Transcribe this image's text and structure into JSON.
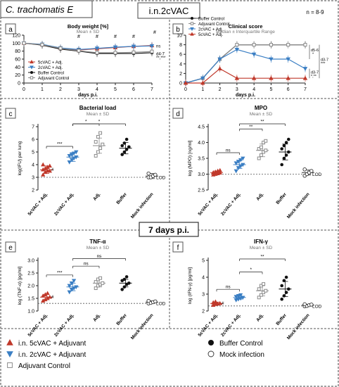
{
  "header": {
    "title": "C. trachomatis E",
    "center_title": "i.n.2cVAC",
    "n_note": "n = 8-9",
    "mid_banner": "7 days p.i."
  },
  "colors": {
    "vac5": "#c0392b",
    "vac2": "#3b7fc4",
    "adj": "#8a8a8a",
    "buffer": "#111111",
    "mock": "#ffffff"
  },
  "legend": {
    "vac5": "i.n. 5cVAC + Adjuvant",
    "vac2": "i.n. 2cVAC + Adjuvant",
    "adj": "Adjuvant Control",
    "buffer": "Buffer Control",
    "mock": "Mock infection"
  },
  "chart_data": [
    {
      "panel": "a",
      "type": "line",
      "title": "Body weight [%]",
      "subtitle": "Mean ± SD",
      "xlabel": "days p.i.",
      "ylabel": "",
      "xlim": [
        0,
        7
      ],
      "ylim": [
        0,
        120
      ],
      "yticks": [
        0,
        20,
        40,
        60,
        80,
        100,
        120
      ],
      "x": [
        0,
        1,
        2,
        3,
        4,
        5,
        6,
        7
      ],
      "legend_items": [
        "5cVAC + Adj.",
        "2cVAC + Adj.",
        "Buffer Control",
        "Adjuvant Control"
      ],
      "series": [
        {
          "name": "5cVAC + Adj.",
          "key": "vac5",
          "values": [
            100,
            96,
            87,
            83,
            86,
            89,
            92,
            94
          ]
        },
        {
          "name": "2cVAC + Adj.",
          "key": "vac2",
          "values": [
            100,
            97,
            88,
            84,
            87,
            90,
            92,
            93
          ]
        },
        {
          "name": "Buffer Control",
          "key": "buffer",
          "values": [
            100,
            95,
            85,
            80,
            74,
            74,
            74,
            76
          ]
        },
        {
          "name": "Adjuvant Control",
          "key": "adj",
          "values": [
            100,
            96,
            87,
            81,
            76,
            76,
            77,
            79
          ]
        }
      ],
      "annotations": [
        "#",
        "#",
        "#",
        "#",
        "#",
        "ns",
        "d4-7",
        "**,***"
      ]
    },
    {
      "panel": "b",
      "type": "line",
      "title": "Clinical score",
      "subtitle": "Median ± Interquartile Range",
      "xlabel": "days p.i.",
      "ylabel": "",
      "xlim": [
        0,
        7
      ],
      "ylim": [
        0,
        10
      ],
      "yticks": [
        0,
        2,
        4,
        6,
        8,
        10
      ],
      "x": [
        0,
        1,
        2,
        3,
        4,
        5,
        6,
        7
      ],
      "legend_items": [
        "Buffer Control",
        "Adjuvant Control",
        "2cVAC + Adj.",
        "5cVAC + Adj."
      ],
      "series": [
        {
          "name": "Buffer Control",
          "key": "buffer",
          "values": [
            0,
            1,
            5,
            8,
            8,
            8,
            8,
            8
          ]
        },
        {
          "name": "Adjuvant Control",
          "key": "adj",
          "values": [
            0,
            1,
            5,
            8,
            8,
            8,
            8,
            8
          ]
        },
        {
          "name": "2cVAC + Adj.",
          "key": "vac2",
          "values": [
            0,
            1,
            5,
            7,
            6,
            5,
            5,
            3
          ]
        },
        {
          "name": "5cVAC + Adj.",
          "key": "vac5",
          "values": [
            0,
            0,
            3,
            1,
            1,
            1,
            1,
            1
          ]
        }
      ],
      "annotations": [
        "d5-6",
        "*",
        "d3-7",
        "***",
        "d3-7",
        "*,**"
      ]
    },
    {
      "panel": "c",
      "type": "scatter",
      "title": "Bacterial load",
      "subtitle": "Mean ± SD",
      "ylabel": "log(IFU) per lung",
      "ylim": [
        2,
        7
      ],
      "yticks": [
        2,
        3,
        4,
        5,
        6,
        7
      ],
      "categories": [
        "5cVAC + Adj.",
        "2cVAC + Adj.",
        "Adj.",
        "Buffer",
        "Mock infection"
      ],
      "lod": 3.0,
      "lod_label": "LOD",
      "groups": [
        {
          "key": "vac5",
          "mean": 3.6,
          "sd": 0.3,
          "points": [
            3.2,
            3.4,
            3.5,
            3.5,
            3.6,
            3.7,
            3.8,
            3.9,
            4.0
          ]
        },
        {
          "key": "vac2",
          "mean": 4.6,
          "sd": 0.35,
          "points": [
            4.2,
            4.4,
            4.5,
            4.6,
            4.7,
            4.8,
            4.9,
            5.0
          ]
        },
        {
          "key": "adj",
          "mean": 5.5,
          "sd": 0.6,
          "points": [
            4.7,
            5.0,
            5.3,
            5.6,
            5.8,
            6.2,
            6.5
          ]
        },
        {
          "key": "buffer",
          "mean": 5.3,
          "sd": 0.45,
          "points": [
            4.8,
            5.0,
            5.2,
            5.4,
            5.5,
            5.7,
            6.0
          ]
        },
        {
          "key": "mock",
          "mean": 3.1,
          "sd": 0.2,
          "points": [
            3.0,
            3.0,
            3.1,
            3.2,
            3.3
          ]
        }
      ],
      "hash_marks": [
        {
          "group": 0,
          "label": "#"
        }
      ],
      "brackets": [
        {
          "from": 0,
          "to": 1,
          "label": "***"
        },
        {
          "from": 1,
          "to": 2,
          "label": "*"
        },
        {
          "from": 1,
          "to": 3,
          "label": "*"
        }
      ]
    },
    {
      "panel": "d",
      "type": "scatter",
      "title": "MPO",
      "subtitle": "Mean ± SD",
      "ylabel": "log (MPO) [ng/ml]",
      "ylim": [
        2.5,
        4.5
      ],
      "yticks": [
        2.5,
        3.0,
        3.5,
        4.0,
        4.5
      ],
      "categories": [
        "5cVAC + Adj.",
        "2cVAC + Adj.",
        "Adj.",
        "Buffer",
        "Mock infection"
      ],
      "lod": 3.0,
      "lod_label": "LOD",
      "groups": [
        {
          "key": "vac5",
          "mean": 3.05,
          "sd": 0.05,
          "points": [
            2.98,
            3.0,
            3.02,
            3.04,
            3.05,
            3.07,
            3.1,
            3.12
          ]
        },
        {
          "key": "vac2",
          "mean": 3.3,
          "sd": 0.12,
          "points": [
            3.1,
            3.2,
            3.25,
            3.3,
            3.35,
            3.4,
            3.45,
            3.5
          ]
        },
        {
          "key": "adj",
          "mean": 3.75,
          "sd": 0.2,
          "points": [
            3.5,
            3.6,
            3.7,
            3.75,
            3.8,
            3.85,
            4.0,
            4.05
          ]
        },
        {
          "key": "buffer",
          "mean": 3.7,
          "sd": 0.25,
          "points": [
            3.3,
            3.5,
            3.6,
            3.7,
            3.8,
            3.9,
            4.0,
            4.1
          ]
        },
        {
          "key": "mock",
          "mean": 3.05,
          "sd": 0.08,
          "points": [
            2.95,
            3.0,
            3.05,
            3.1,
            3.15
          ]
        }
      ],
      "hash_marks": [],
      "brackets": [
        {
          "from": 0,
          "to": 1,
          "label": "ns"
        },
        {
          "from": 1,
          "to": 2,
          "label": "**"
        },
        {
          "from": 1,
          "to": 3,
          "label": "**"
        }
      ]
    },
    {
      "panel": "e",
      "type": "scatter",
      "title": "TNF-α",
      "subtitle": "Mean ± SD",
      "ylabel": "log (TNF-α) [pg/ml]",
      "ylim": [
        1.0,
        3.0
      ],
      "yticks": [
        1.0,
        1.5,
        2.0,
        2.5,
        3.0
      ],
      "categories": [
        "5cVAC + Adj.",
        "2cVAC + Adj.",
        "Adj.",
        "Buffer",
        "Mock infection"
      ],
      "lod": 1.3,
      "lod_label": "LOD",
      "groups": [
        {
          "key": "vac5",
          "mean": 1.55,
          "sd": 0.1,
          "points": [
            1.4,
            1.45,
            1.5,
            1.55,
            1.6,
            1.65,
            1.7
          ]
        },
        {
          "key": "vac2",
          "mean": 1.95,
          "sd": 0.15,
          "points": [
            1.75,
            1.85,
            1.9,
            1.95,
            2.0,
            2.1,
            2.2
          ]
        },
        {
          "key": "adj",
          "mean": 2.1,
          "sd": 0.15,
          "points": [
            1.9,
            2.0,
            2.05,
            2.1,
            2.15,
            2.25,
            2.3
          ]
        },
        {
          "key": "buffer",
          "mean": 2.1,
          "sd": 0.15,
          "points": [
            1.85,
            1.95,
            2.05,
            2.1,
            2.2,
            2.25,
            2.35
          ]
        },
        {
          "key": "mock",
          "mean": 1.35,
          "sd": 0.05,
          "points": [
            1.3,
            1.32,
            1.35,
            1.38,
            1.4
          ]
        }
      ],
      "hash_marks": [
        {
          "group": 0,
          "label": "#"
        }
      ],
      "brackets": [
        {
          "from": 0,
          "to": 1,
          "label": "***"
        },
        {
          "from": 1,
          "to": 2,
          "label": "ns"
        },
        {
          "from": 1,
          "to": 3,
          "label": "ns"
        }
      ]
    },
    {
      "panel": "f",
      "type": "scatter",
      "title": "IFN-γ",
      "subtitle": "Mean ± SD",
      "ylabel": "log (IFN-γ) [pg/ml]",
      "ylim": [
        2,
        5
      ],
      "yticks": [
        2,
        3,
        4,
        5
      ],
      "categories": [
        "5cVAC + Adj.",
        "2cVAC + Adj.",
        "Adj.",
        "Buffer",
        "Mock infection"
      ],
      "lod": 2.3,
      "lod_label": "LOD",
      "groups": [
        {
          "key": "vac5",
          "mean": 2.45,
          "sd": 0.08,
          "points": [
            2.35,
            2.4,
            2.42,
            2.45,
            2.5,
            2.55
          ]
        },
        {
          "key": "vac2",
          "mean": 2.8,
          "sd": 0.1,
          "points": [
            2.65,
            2.7,
            2.75,
            2.8,
            2.85,
            2.9,
            2.95
          ]
        },
        {
          "key": "adj",
          "mean": 3.2,
          "sd": 0.3,
          "points": [
            2.8,
            2.95,
            3.1,
            3.2,
            3.3,
            3.5,
            3.6
          ]
        },
        {
          "key": "buffer",
          "mean": 3.3,
          "sd": 0.45,
          "points": [
            2.7,
            2.9,
            3.1,
            3.3,
            3.5,
            3.8,
            4.0
          ]
        },
        {
          "key": "mock",
          "mean": 2.35,
          "sd": 0.05,
          "points": [
            2.28,
            2.3,
            2.35,
            2.38,
            2.4
          ]
        }
      ],
      "hash_marks": [
        {
          "group": 0,
          "label": "#"
        }
      ],
      "brackets": [
        {
          "from": 0,
          "to": 1,
          "label": "ns"
        },
        {
          "from": 1,
          "to": 2,
          "label": "*"
        },
        {
          "from": 1,
          "to": 3,
          "label": "**"
        }
      ]
    }
  ]
}
